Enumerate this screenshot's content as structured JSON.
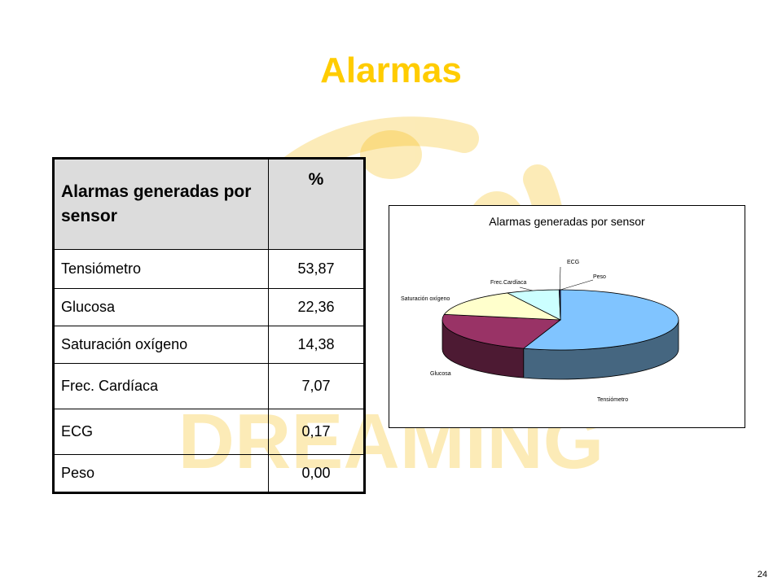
{
  "slide": {
    "title": "Alarmas",
    "page_number": "24",
    "watermark_text": "DREAMING"
  },
  "table": {
    "headers": [
      "Alarmas generadas por sensor",
      "%"
    ],
    "rows": [
      {
        "sensor": "Tensiómetro",
        "pct": "53,87"
      },
      {
        "sensor": "Glucosa",
        "pct": "22,36"
      },
      {
        "sensor": "Saturación oxígeno",
        "pct": "14,38"
      },
      {
        "sensor": "Frec. Cardíaca",
        "pct": "7,07"
      },
      {
        "sensor": "ECG",
        "pct": "0,17"
      },
      {
        "sensor": "Peso",
        "pct": "0,00"
      }
    ]
  },
  "chart_data": {
    "type": "pie",
    "title": "Alarmas generadas por sensor",
    "categories": [
      "Tensiómetro",
      "Glucosa",
      "Saturación oxígeno",
      "Frec. Cardíaca",
      "ECG",
      "Peso"
    ],
    "values": [
      53.87,
      22.36,
      14.38,
      7.07,
      0.17,
      0.0
    ],
    "labels": [
      "Tensiómetro",
      "Glucosa",
      "Saturación oxígeno",
      "Frec.Cardíaca",
      "ECG",
      "Peso"
    ],
    "colors": [
      "#80c4ff",
      "#993366",
      "#ffffcc",
      "#ccffff",
      "#333399",
      "#ffffff"
    ],
    "side_colors": [
      "#456680",
      "#4d1a33",
      "#999966",
      "#669999",
      "#1a1a4d",
      "#999999"
    ],
    "style": "3d-exploded-none",
    "legend": "none"
  },
  "colors": {
    "title": "#ffcc00",
    "header_bg": "#dcdcdc",
    "watermark": "#f7c94a"
  }
}
